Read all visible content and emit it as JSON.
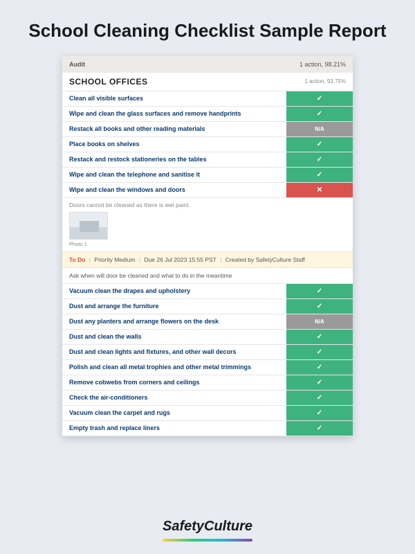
{
  "page": {
    "title": "School Cleaning Checklist Sample Report"
  },
  "audit": {
    "label": "Audit",
    "meta": "1 action, 98.21%"
  },
  "section": {
    "title": "SCHOOL OFFICES",
    "meta": "1 action, 93.75%"
  },
  "colors": {
    "pass": "#3fb37f",
    "fail": "#d9534f",
    "na": "#9a9a9a",
    "todo_bg": "#fff6e0",
    "page_bg": "#e8ecf2",
    "label_text": "#0a3a6e"
  },
  "items_top": [
    {
      "label": "Clean all visible surfaces",
      "status": "pass"
    },
    {
      "label": "Wipe and clean the glass surfaces and remove handprints",
      "status": "pass"
    },
    {
      "label": "Restack all books and other reading materials",
      "status": "na",
      "status_text": "N/A"
    },
    {
      "label": "Place books on shelves",
      "status": "pass"
    },
    {
      "label": "Restack and restock stationeries on the tables",
      "status": "pass"
    },
    {
      "label": "Wipe and clean the telephone and sanitise it",
      "status": "pass"
    },
    {
      "label": "Wipe and clean the windows and doors",
      "status": "fail"
    }
  ],
  "fail_note": "Doors cannot be cleaned as there is wet paint.",
  "photo": {
    "caption": "Photo 1"
  },
  "todo": {
    "label": "To Do",
    "priority": "Priority Medium",
    "due": "Due 26 Jul 2023 15:55 PST",
    "creator": "Created by SafetyCulture Staff",
    "description": "Ask when will door be cleaned and what to do in the meantime"
  },
  "items_bottom": [
    {
      "label": "Vacuum clean the drapes and upholstery",
      "status": "pass"
    },
    {
      "label": "Dust and arrange the furniture",
      "status": "pass"
    },
    {
      "label": "Dust any planters and arrange flowers on the desk",
      "status": "na",
      "status_text": "N/A"
    },
    {
      "label": "Dust and clean the walls",
      "status": "pass"
    },
    {
      "label": "Dust and clean lights and fixtures, and other wall decors",
      "status": "pass"
    },
    {
      "label": "Polish and clean all metal trophies and other metal trimmings",
      "status": "pass"
    },
    {
      "label": "Remove cobwebs from corners and ceilings",
      "status": "pass"
    },
    {
      "label": "Check the air-conditioners",
      "status": "pass"
    },
    {
      "label": "Vacuum clean the carpet and rugs",
      "status": "pass"
    },
    {
      "label": "Empty trash and replace liners",
      "status": "pass"
    }
  ],
  "brand": {
    "name": "SafetyCulture"
  }
}
